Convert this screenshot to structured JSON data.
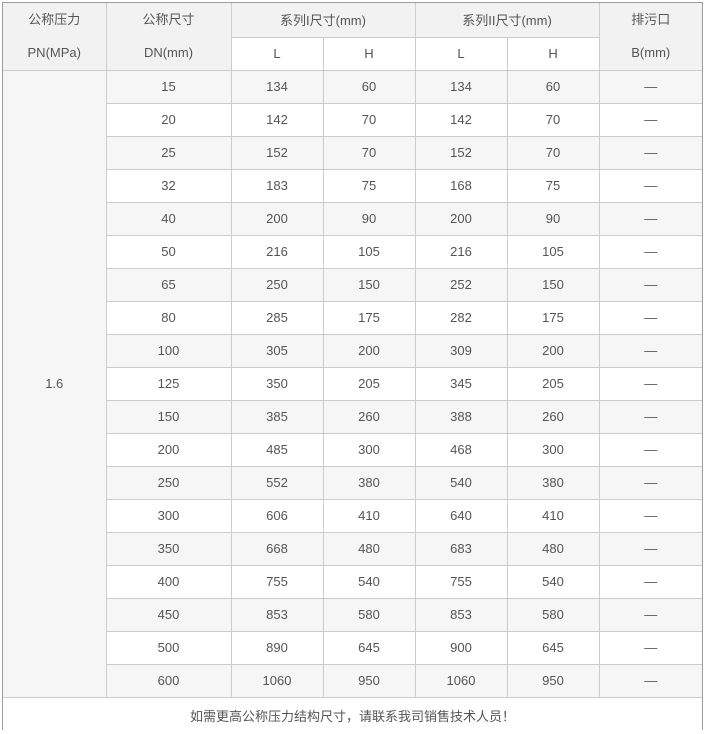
{
  "colors": {
    "header_bg": "#f2f2f2",
    "stripe_bg": "#f6f6f6",
    "border_inner": "#cccccc",
    "border_outer": "#9c9c9c",
    "text": "#555555"
  },
  "table": {
    "header": {
      "pressure_title": "公称压力",
      "pressure_unit": "PN(MPa)",
      "size_title": "公称尺寸",
      "size_unit": "DN(mm)",
      "series1_title": "系列I尺寸(mm)",
      "series2_title": "系列II尺寸(mm)",
      "sub_cols": [
        "L",
        "H"
      ],
      "drain_title": "排污口",
      "drain_unit": "B(mm)"
    },
    "pn_value": "1.6",
    "columns_order": [
      "dn",
      "s1_l",
      "s1_h",
      "s2_l",
      "s2_h",
      "b"
    ],
    "rows": [
      {
        "dn": "15",
        "s1_l": "134",
        "s1_h": "60",
        "s2_l": "134",
        "s2_h": "60",
        "b": "—"
      },
      {
        "dn": "20",
        "s1_l": "142",
        "s1_h": "70",
        "s2_l": "142",
        "s2_h": "70",
        "b": "—"
      },
      {
        "dn": "25",
        "s1_l": "152",
        "s1_h": "70",
        "s2_l": "152",
        "s2_h": "70",
        "b": "—"
      },
      {
        "dn": "32",
        "s1_l": "183",
        "s1_h": "75",
        "s2_l": "168",
        "s2_h": "75",
        "b": "—"
      },
      {
        "dn": "40",
        "s1_l": "200",
        "s1_h": "90",
        "s2_l": "200",
        "s2_h": "90",
        "b": "—"
      },
      {
        "dn": "50",
        "s1_l": "216",
        "s1_h": "105",
        "s2_l": "216",
        "s2_h": "105",
        "b": "—"
      },
      {
        "dn": "65",
        "s1_l": "250",
        "s1_h": "150",
        "s2_l": "252",
        "s2_h": "150",
        "b": "—"
      },
      {
        "dn": "80",
        "s1_l": "285",
        "s1_h": "175",
        "s2_l": "282",
        "s2_h": "175",
        "b": "—"
      },
      {
        "dn": "100",
        "s1_l": "305",
        "s1_h": "200",
        "s2_l": "309",
        "s2_h": "200",
        "b": "—"
      },
      {
        "dn": "125",
        "s1_l": "350",
        "s1_h": "205",
        "s2_l": "345",
        "s2_h": "205",
        "b": "—"
      },
      {
        "dn": "150",
        "s1_l": "385",
        "s1_h": "260",
        "s2_l": "388",
        "s2_h": "260",
        "b": "—"
      },
      {
        "dn": "200",
        "s1_l": "485",
        "s1_h": "300",
        "s2_l": "468",
        "s2_h": "300",
        "b": "—"
      },
      {
        "dn": "250",
        "s1_l": "552",
        "s1_h": "380",
        "s2_l": "540",
        "s2_h": "380",
        "b": "—"
      },
      {
        "dn": "300",
        "s1_l": "606",
        "s1_h": "410",
        "s2_l": "640",
        "s2_h": "410",
        "b": "—"
      },
      {
        "dn": "350",
        "s1_l": "668",
        "s1_h": "480",
        "s2_l": "683",
        "s2_h": "480",
        "b": "—"
      },
      {
        "dn": "400",
        "s1_l": "755",
        "s1_h": "540",
        "s2_l": "755",
        "s2_h": "540",
        "b": "—"
      },
      {
        "dn": "450",
        "s1_l": "853",
        "s1_h": "580",
        "s2_l": "853",
        "s2_h": "580",
        "b": "—"
      },
      {
        "dn": "500",
        "s1_l": "890",
        "s1_h": "645",
        "s2_l": "900",
        "s2_h": "645",
        "b": "—"
      },
      {
        "dn": "600",
        "s1_l": "1060",
        "s1_h": "950",
        "s2_l": "1060",
        "s2_h": "950",
        "b": "—"
      }
    ],
    "footer_note": "如需更高公称压力结构尺寸，请联系我司销售技术人员！"
  }
}
